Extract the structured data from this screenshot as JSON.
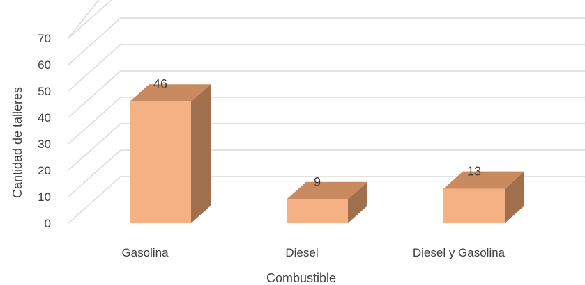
{
  "chart_data": {
    "type": "bar",
    "style": "3d-column",
    "categories": [
      "Gasolina",
      "Diesel",
      "Diesel y Gasolina"
    ],
    "values": [
      46,
      9,
      13
    ],
    "xlabel": "Combustible",
    "ylabel": "Cantidad de talleres",
    "ylim": [
      0,
      70
    ],
    "yticks": [
      0,
      10,
      20,
      30,
      40,
      50,
      60,
      70
    ],
    "grid": true,
    "legend": "none",
    "data_labels": true,
    "colors": {
      "bar_front": "#F4B183",
      "bar_top": "#C98A5F",
      "bar_side": "#A0704D",
      "grid": "#D9D9D9",
      "text": "#404040"
    }
  }
}
